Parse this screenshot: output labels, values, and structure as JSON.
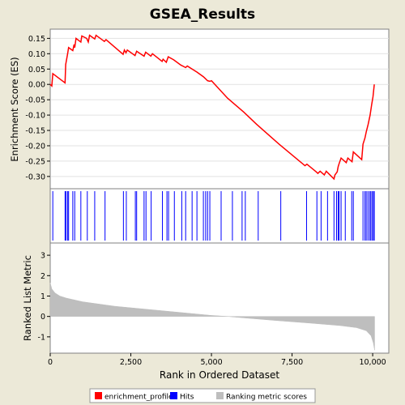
{
  "chart_data": {
    "type": "line",
    "title": "GSEA_Results",
    "xlabel": "Rank in Ordered Dataset",
    "xlim": [
      0,
      10500
    ],
    "x_ticks": [
      0,
      2500,
      5000,
      7500,
      10000
    ],
    "x_tick_labels": [
      "0",
      "2,500",
      "5,000",
      "7,500",
      "10,000"
    ],
    "enrichment": {
      "ylabel": "Enrichment Score (ES)",
      "ylim": [
        -0.34,
        0.18
      ],
      "y_ticks": [
        0.15,
        0.1,
        0.05,
        0.0,
        -0.05,
        -0.1,
        -0.15,
        -0.2,
        -0.25,
        -0.3
      ],
      "y_tick_labels": [
        "0.15",
        "0.10",
        "0.05",
        "0.00",
        "-0.05",
        "-0.10",
        "-0.15",
        "-0.20",
        "-0.25",
        "-0.30"
      ],
      "color": "#FF0000",
      "series_name": "enrichment_profile",
      "points": [
        [
          0,
          0.0
        ],
        [
          50,
          -0.005
        ],
        [
          80,
          0.035
        ],
        [
          460,
          0.005
        ],
        [
          480,
          0.065
        ],
        [
          540,
          0.1
        ],
        [
          570,
          0.12
        ],
        [
          700,
          0.11
        ],
        [
          740,
          0.13
        ],
        [
          760,
          0.12
        ],
        [
          800,
          0.15
        ],
        [
          950,
          0.138
        ],
        [
          980,
          0.158
        ],
        [
          1130,
          0.15
        ],
        [
          1180,
          0.138
        ],
        [
          1220,
          0.16
        ],
        [
          1380,
          0.148
        ],
        [
          1420,
          0.16
        ],
        [
          1680,
          0.14
        ],
        [
          1730,
          0.146
        ],
        [
          2260,
          0.098
        ],
        [
          2300,
          0.112
        ],
        [
          2350,
          0.103
        ],
        [
          2390,
          0.112
        ],
        [
          2630,
          0.094
        ],
        [
          2680,
          0.108
        ],
        [
          2910,
          0.092
        ],
        [
          2960,
          0.105
        ],
        [
          3120,
          0.092
        ],
        [
          3170,
          0.1
        ],
        [
          3470,
          0.075
        ],
        [
          3500,
          0.082
        ],
        [
          3600,
          0.072
        ],
        [
          3660,
          0.09
        ],
        [
          3830,
          0.08
        ],
        [
          4050,
          0.063
        ],
        [
          4200,
          0.055
        ],
        [
          4250,
          0.06
        ],
        [
          4400,
          0.05
        ],
        [
          4550,
          0.04
        ],
        [
          4750,
          0.025
        ],
        [
          4880,
          0.012
        ],
        [
          4950,
          0.01
        ],
        [
          5000,
          0.012
        ],
        [
          5500,
          -0.045
        ],
        [
          6000,
          -0.09
        ],
        [
          6400,
          -0.13
        ],
        [
          7100,
          -0.195
        ],
        [
          7900,
          -0.265
        ],
        [
          7960,
          -0.26
        ],
        [
          8250,
          -0.285
        ],
        [
          8300,
          -0.29
        ],
        [
          8370,
          -0.283
        ],
        [
          8500,
          -0.295
        ],
        [
          8560,
          -0.283
        ],
        [
          8800,
          -0.308
        ],
        [
          8830,
          -0.295
        ],
        [
          8900,
          -0.285
        ],
        [
          8930,
          -0.268
        ],
        [
          8960,
          -0.258
        ],
        [
          9020,
          -0.24
        ],
        [
          9180,
          -0.255
        ],
        [
          9230,
          -0.24
        ],
        [
          9360,
          -0.252
        ],
        [
          9400,
          -0.22
        ],
        [
          9660,
          -0.245
        ],
        [
          9700,
          -0.195
        ],
        [
          9760,
          -0.175
        ],
        [
          9800,
          -0.155
        ],
        [
          9860,
          -0.13
        ],
        [
          9920,
          -0.1
        ],
        [
          9970,
          -0.065
        ],
        [
          10010,
          -0.04
        ],
        [
          10050,
          0.0
        ]
      ]
    },
    "hits": {
      "color": "#0000FF",
      "series_name": "Hits",
      "positions": [
        80,
        460,
        490,
        540,
        570,
        700,
        760,
        950,
        1150,
        1380,
        1700,
        2270,
        2360,
        2640,
        2680,
        2910,
        2970,
        3130,
        3480,
        3620,
        3670,
        3850,
        4080,
        4200,
        4400,
        4550,
        4750,
        4820,
        4880,
        4950,
        5300,
        5650,
        5950,
        6050,
        6450,
        7150,
        7950,
        8270,
        8400,
        8600,
        8800,
        8880,
        8930,
        8960,
        9020,
        9150,
        9350,
        9400,
        9700,
        9760,
        9800,
        9850,
        9900,
        9940,
        9980,
        10020,
        10050
      ]
    },
    "ranking": {
      "ylabel": "Ranked List Metric",
      "ylim": [
        -1.8,
        3.6
      ],
      "y_ticks": [
        3,
        2,
        1,
        0,
        -1
      ],
      "y_tick_labels": [
        "3",
        "2",
        "1",
        "0",
        "-1"
      ],
      "color": "#BEBEBE",
      "series_name": "Ranking metric scores",
      "n": 10060,
      "curve": [
        [
          0,
          1.65
        ],
        [
          50,
          1.35
        ],
        [
          150,
          1.15
        ],
        [
          300,
          1.0
        ],
        [
          500,
          0.9
        ],
        [
          1000,
          0.72
        ],
        [
          2000,
          0.5
        ],
        [
          3000,
          0.35
        ],
        [
          4000,
          0.2
        ],
        [
          5000,
          0.05
        ],
        [
          5500,
          0.0
        ],
        [
          6000,
          -0.07
        ],
        [
          7000,
          -0.2
        ],
        [
          8000,
          -0.32
        ],
        [
          9000,
          -0.45
        ],
        [
          9500,
          -0.55
        ],
        [
          9800,
          -0.7
        ],
        [
          9950,
          -0.95
        ],
        [
          10020,
          -1.3
        ],
        [
          10060,
          -1.65
        ]
      ]
    },
    "legend": [
      {
        "label": "enrichment_profile",
        "color": "#FF0000"
      },
      {
        "label": "Hits",
        "color": "#0000FF"
      },
      {
        "label": "Ranking metric scores",
        "color": "#BEBEBE"
      }
    ]
  }
}
